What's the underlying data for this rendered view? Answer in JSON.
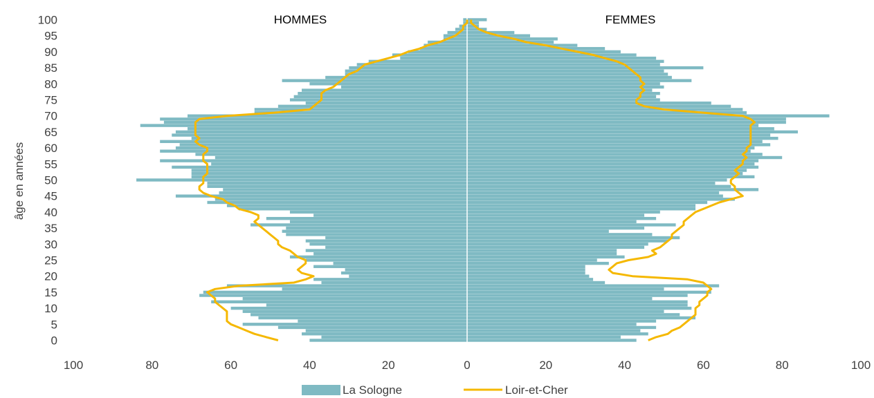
{
  "chart_data": {
    "type": "bar",
    "orientation": "horizontal",
    "subtype": "population-pyramid",
    "left_panel_title": "HOMMES",
    "right_panel_title": "FEMMES",
    "ylabel": "âge en années",
    "xlabel": "",
    "xlim": [
      -100,
      100
    ],
    "ylim": [
      0,
      100
    ],
    "x_tick_labels": [
      "100",
      "80",
      "60",
      "40",
      "20",
      "0",
      "20",
      "40",
      "60",
      "80",
      "100"
    ],
    "y_tick_labels": [
      "0",
      "5",
      "10",
      "15",
      "20",
      "25",
      "30",
      "35",
      "40",
      "45",
      "50",
      "55",
      "60",
      "65",
      "70",
      "75",
      "80",
      "85",
      "90",
      "95",
      "100"
    ],
    "ages": [
      0,
      1,
      2,
      3,
      4,
      5,
      6,
      7,
      8,
      9,
      10,
      11,
      12,
      13,
      14,
      15,
      16,
      17,
      18,
      19,
      20,
      21,
      22,
      23,
      24,
      25,
      26,
      27,
      28,
      29,
      30,
      31,
      32,
      33,
      34,
      35,
      36,
      37,
      38,
      39,
      40,
      41,
      42,
      43,
      44,
      45,
      46,
      47,
      48,
      49,
      50,
      51,
      52,
      53,
      54,
      55,
      56,
      57,
      58,
      59,
      60,
      61,
      62,
      63,
      64,
      65,
      66,
      67,
      68,
      69,
      70,
      71,
      72,
      73,
      74,
      75,
      76,
      77,
      78,
      79,
      80,
      81,
      82,
      83,
      84,
      85,
      86,
      87,
      88,
      89,
      90,
      91,
      92,
      93,
      94,
      95,
      96,
      97,
      98,
      99,
      100
    ],
    "series": [
      {
        "name": "La Sologne",
        "kind": "bar",
        "color": "#7fbac3",
        "men": [
          40,
          37,
          42,
          41,
          48,
          57,
          43,
          53,
          55,
          57,
          60,
          51,
          65,
          57,
          68,
          67,
          47,
          61,
          37,
          39,
          30,
          32,
          31,
          39,
          34,
          41,
          45,
          39,
          41,
          36,
          40,
          41,
          36,
          46,
          47,
          46,
          55,
          45,
          51,
          39,
          45,
          58,
          61,
          66,
          64,
          74,
          63,
          62,
          66,
          66,
          84,
          70,
          70,
          70,
          75,
          65,
          78,
          64,
          69,
          78,
          74,
          73,
          78,
          70,
          75,
          74,
          71,
          83,
          77,
          78,
          71,
          54,
          54,
          48,
          41,
          45,
          44,
          43,
          42,
          32,
          40,
          47,
          36,
          31,
          31,
          30,
          28,
          25,
          17,
          19,
          15,
          12,
          11,
          10,
          6,
          6,
          5,
          3,
          2,
          1,
          1
        ],
        "women": [
          43,
          39,
          46,
          44,
          48,
          43,
          48,
          58,
          54,
          50,
          57,
          56,
          56,
          47,
          56,
          62,
          50,
          64,
          35,
          32,
          31,
          30,
          30,
          30,
          36,
          33,
          40,
          38,
          38,
          45,
          46,
          51,
          54,
          47,
          36,
          45,
          53,
          43,
          48,
          45,
          49,
          58,
          58,
          61,
          68,
          65,
          64,
          74,
          67,
          63,
          66,
          73,
          70,
          71,
          74,
          73,
          74,
          80,
          75,
          72,
          73,
          77,
          75,
          79,
          77,
          84,
          78,
          74,
          81,
          81,
          92,
          71,
          70,
          67,
          62,
          49,
          48,
          49,
          47,
          50,
          49,
          57,
          52,
          51,
          50,
          60,
          49,
          50,
          48,
          43,
          39,
          35,
          28,
          22,
          23,
          16,
          12,
          5,
          3,
          3,
          5
        ]
      },
      {
        "name": "Loir-et-Cher",
        "kind": "line",
        "color": "#f5b800",
        "men": [
          48,
          51,
          54,
          56,
          58,
          60,
          61,
          61,
          61,
          61,
          62,
          63,
          64,
          64,
          65,
          66,
          64,
          58,
          44,
          41,
          39,
          42,
          43,
          42,
          41,
          41,
          43,
          44,
          45,
          47,
          48,
          48,
          49,
          50,
          51,
          52,
          53,
          54,
          53,
          53,
          55,
          58,
          59,
          61,
          62,
          65,
          67,
          68,
          68,
          67,
          67,
          67,
          66,
          66,
          66,
          66,
          67,
          67,
          67,
          66,
          66,
          68,
          69,
          68,
          69,
          69,
          69,
          69,
          69,
          68,
          61,
          49,
          40,
          39,
          38,
          37,
          37,
          37,
          36,
          34,
          33,
          32,
          31,
          30,
          28,
          27,
          26,
          23,
          20,
          17,
          15,
          12,
          10,
          7,
          5,
          3,
          2,
          1,
          1,
          0,
          0
        ],
        "women": [
          46,
          48,
          51,
          52,
          54,
          55,
          56,
          57,
          58,
          58,
          58,
          59,
          59,
          60,
          61,
          61,
          62,
          61,
          60,
          56,
          42,
          37,
          36,
          37,
          38,
          41,
          46,
          48,
          47,
          49,
          50,
          51,
          52,
          52,
          53,
          54,
          55,
          55,
          56,
          57,
          58,
          60,
          62,
          64,
          67,
          70,
          69,
          68,
          68,
          67,
          67,
          68,
          69,
          68,
          69,
          70,
          70,
          71,
          70,
          71,
          71,
          72,
          72,
          72,
          72,
          72,
          72,
          72,
          73,
          72,
          70,
          60,
          50,
          45,
          43,
          43,
          44,
          44,
          45,
          44,
          45,
          44,
          44,
          43,
          42,
          41,
          40,
          38,
          35,
          32,
          28,
          24,
          20,
          15,
          12,
          8,
          5,
          3,
          2,
          1,
          1
        ]
      }
    ],
    "legend": [
      "La Sologne",
      "Loir-et-Cher"
    ],
    "legend_position": "bottom",
    "grid": false
  }
}
